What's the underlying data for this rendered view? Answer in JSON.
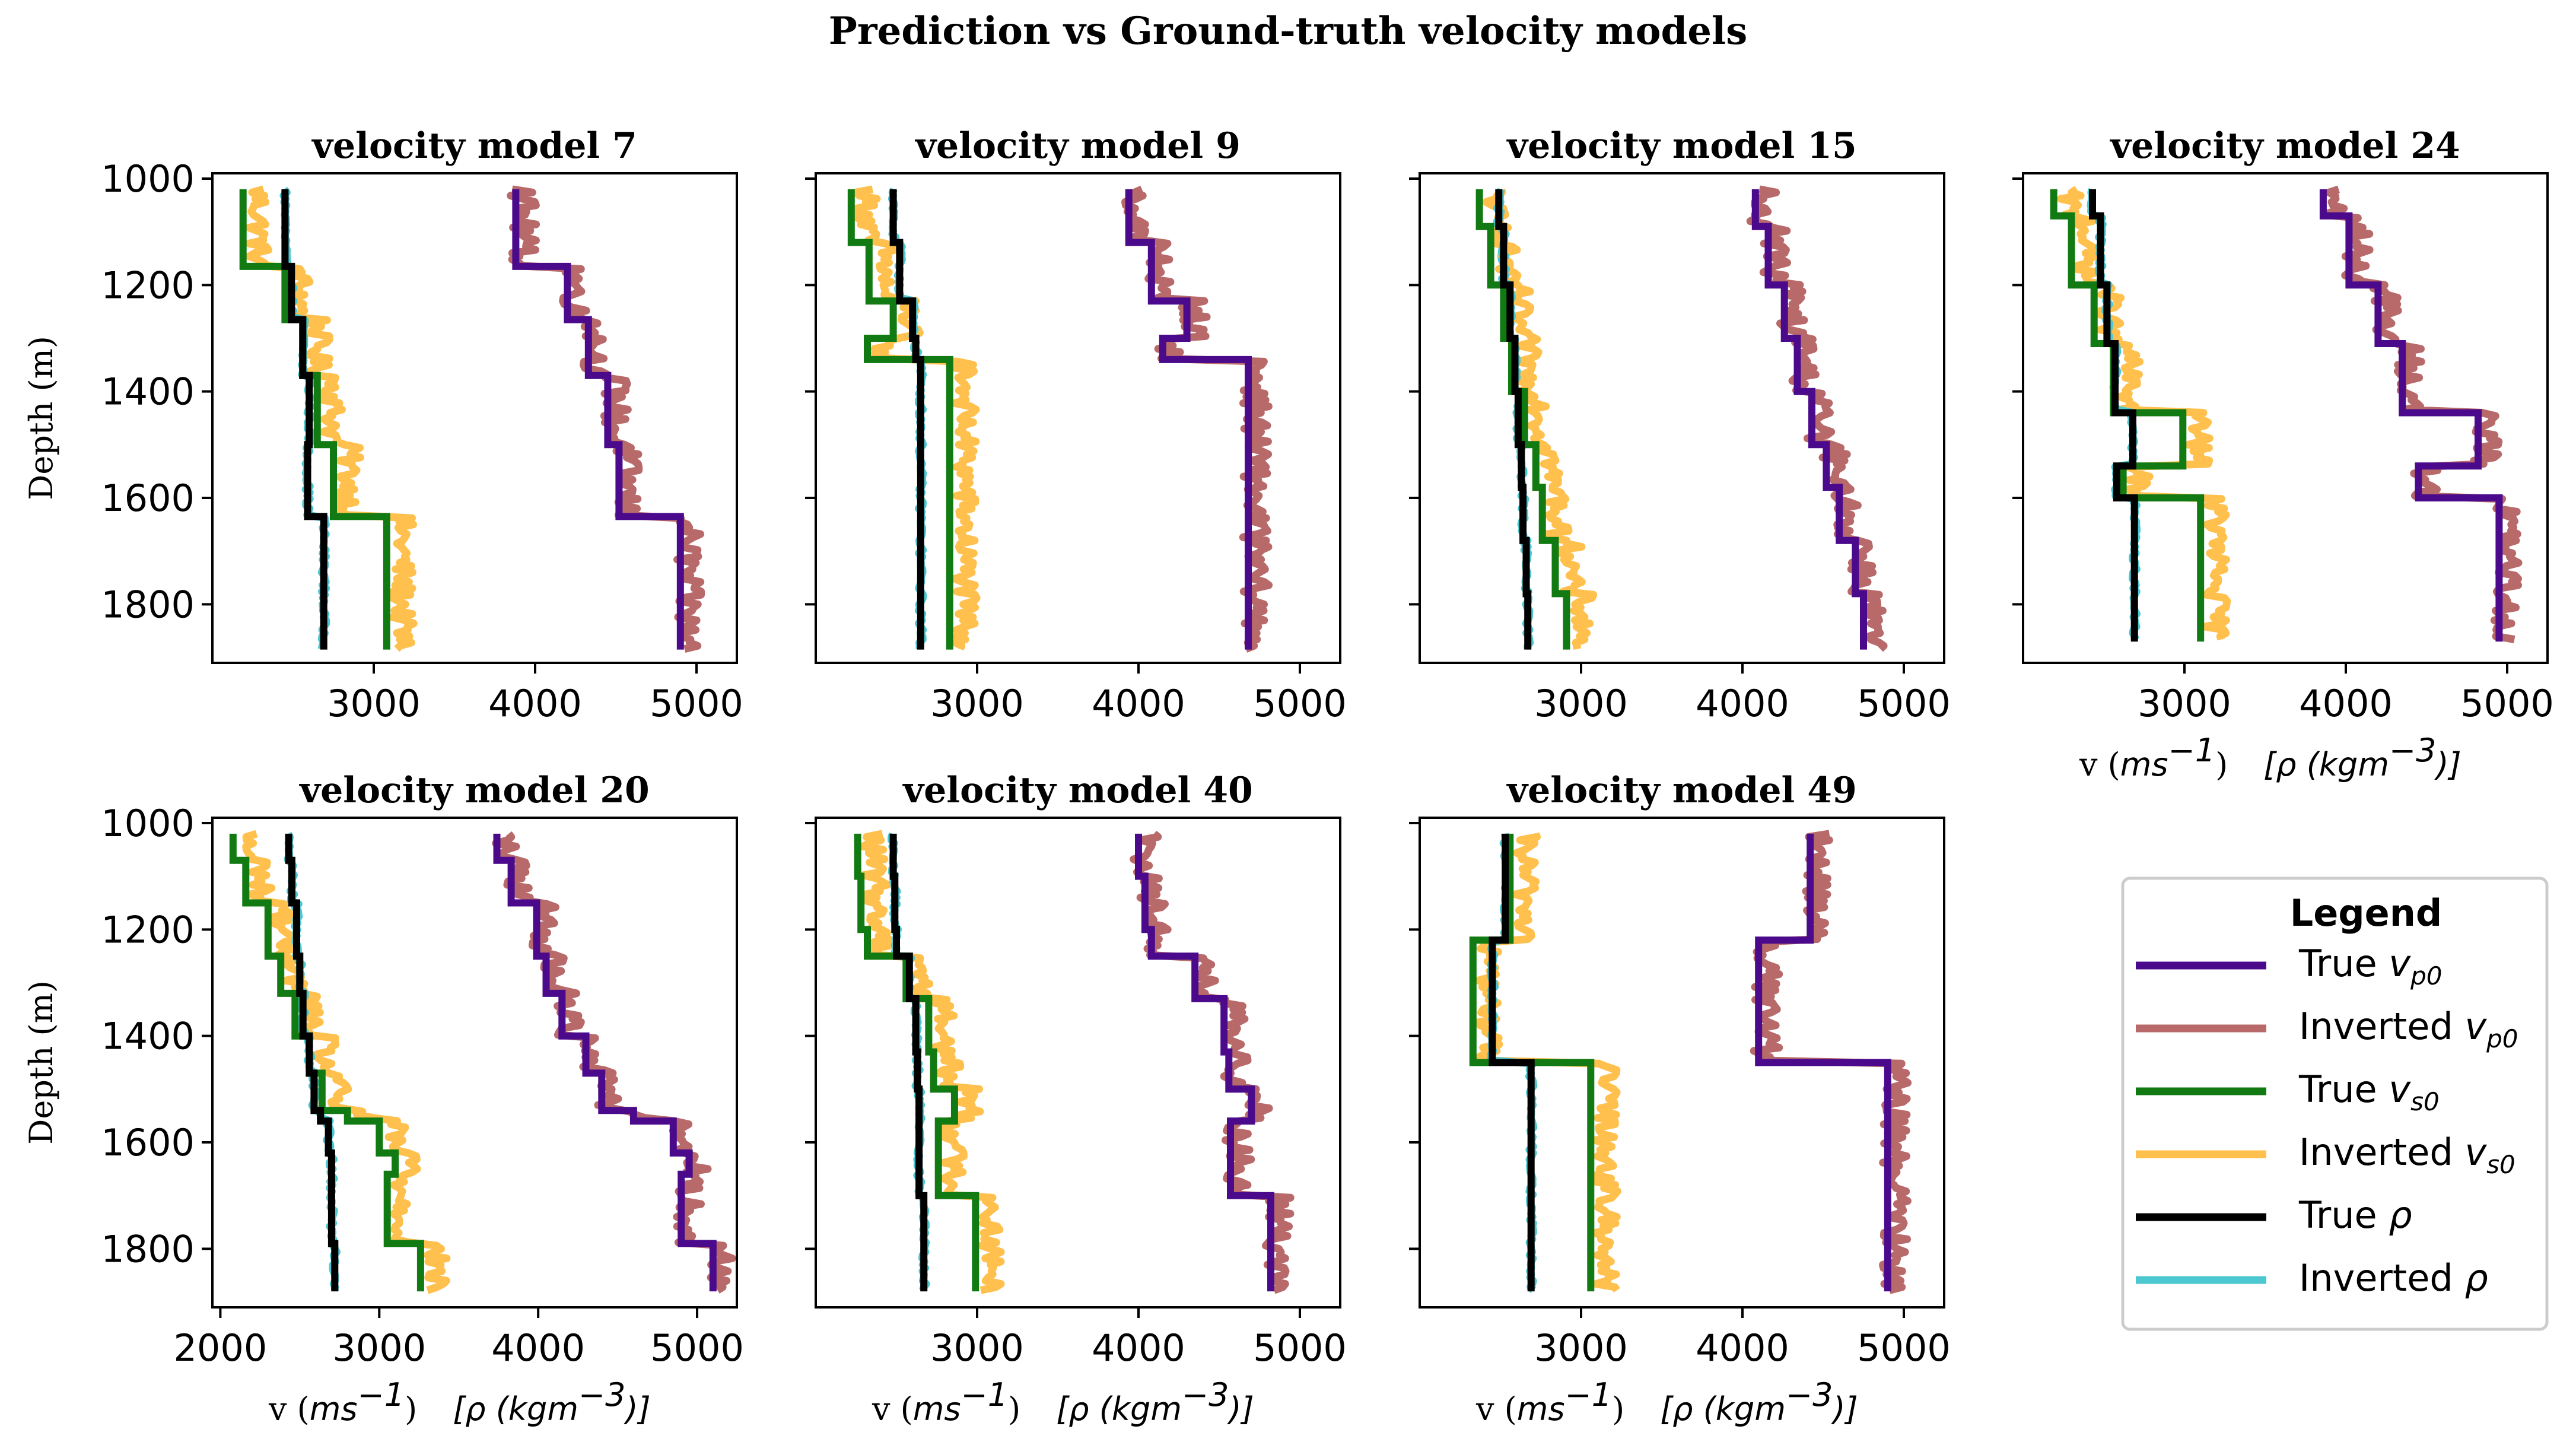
{
  "figure_title": "Prediction vs Ground-truth velocity models",
  "colors": {
    "true_vp": "#4b0a8c",
    "inv_vp": "#b86a6a",
    "true_vs": "#127a12",
    "inv_vs": "#ffc04d",
    "true_rho": "#000000",
    "inv_rho": "#4dc8d0"
  },
  "legend": {
    "title": "Legend",
    "entries": [
      {
        "text": "True ",
        "sym": "v",
        "sub": "p0",
        "color_key": "true_vp"
      },
      {
        "text": "Inverted ",
        "sym": "v",
        "sub": "p0",
        "color_key": "inv_vp"
      },
      {
        "text": "True ",
        "sym": "v",
        "sub": "s0",
        "color_key": "true_vs"
      },
      {
        "text": "Inverted ",
        "sym": "v",
        "sub": "s0",
        "color_key": "inv_vs"
      },
      {
        "text": "True ",
        "sym": "ρ",
        "sub": "",
        "color_key": "true_rho"
      },
      {
        "text": "Inverted ",
        "sym": "ρ",
        "sub": "",
        "color_key": "inv_rho"
      }
    ]
  },
  "axis_text": {
    "ylabel": "Depth (m)",
    "xlabel_v": "v (",
    "xlabel_unit": "ms",
    "xlabel_exp": "−1",
    "xlabel_close": ")",
    "xlabel_rho_open": "[",
    "xlabel_rho": "ρ (kgm",
    "xlabel_rho_exp": "−3",
    "xlabel_rho_close": ")]"
  },
  "chart_data": [
    {
      "type": "line",
      "title": "velocity model 7",
      "xlim": [
        2000,
        5250
      ],
      "ylim": [
        1910,
        990
      ],
      "show_xticks": [
        2000,
        3000,
        4000,
        5000
      ],
      "x_tick_labels": [
        "3000",
        "4000",
        "5000"
      ],
      "y_ticks": [
        1000,
        1200,
        1400,
        1600,
        1800
      ],
      "series": {
        "true_vp": {
          "x": [
            3880,
            3880,
            4200,
            4200,
            4330,
            4330,
            4450,
            4450,
            4520,
            4520,
            4900,
            4900
          ],
          "y": [
            1020,
            1165,
            1165,
            1265,
            1265,
            1370,
            1370,
            1500,
            1500,
            1635,
            1635,
            1885
          ]
        },
        "true_vs": {
          "x": [
            2190,
            2190,
            2450,
            2450,
            2560,
            2560,
            2650,
            2650,
            2750,
            2750,
            3080,
            3080
          ],
          "y": [
            1020,
            1165,
            1165,
            1265,
            1265,
            1370,
            1370,
            1500,
            1500,
            1635,
            1635,
            1885
          ]
        },
        "true_rho": {
          "x": [
            2450,
            2450,
            2490,
            2490,
            2560,
            2560,
            2600,
            2600,
            2590,
            2590,
            2690,
            2690
          ],
          "y": [
            1020,
            1165,
            1165,
            1265,
            1265,
            1370,
            1370,
            1500,
            1500,
            1635,
            1635,
            1885
          ]
        }
      }
    },
    {
      "type": "line",
      "title": "velocity model 9",
      "xlim": [
        2000,
        5250
      ],
      "ylim": [
        1910,
        990
      ],
      "x_tick_labels": [
        "3000",
        "4000",
        "5000"
      ],
      "y_ticks": [
        1000,
        1200,
        1400,
        1600,
        1800
      ],
      "series": {
        "true_vp": {
          "x": [
            3940,
            3940,
            4080,
            4080,
            4300,
            4300,
            4150,
            4150,
            4680,
            4680
          ],
          "y": [
            1020,
            1120,
            1120,
            1230,
            1230,
            1300,
            1300,
            1340,
            1340,
            1885
          ]
        },
        "true_vs": {
          "x": [
            2220,
            2220,
            2330,
            2330,
            2480,
            2480,
            2320,
            2320,
            2830,
            2830
          ],
          "y": [
            1020,
            1120,
            1120,
            1230,
            1230,
            1300,
            1300,
            1340,
            1340,
            1885
          ]
        },
        "true_rho": {
          "x": [
            2480,
            2480,
            2520,
            2520,
            2600,
            2600,
            2620,
            2620,
            2650,
            2650
          ],
          "y": [
            1020,
            1120,
            1120,
            1230,
            1230,
            1300,
            1300,
            1340,
            1340,
            1885
          ]
        }
      }
    },
    {
      "type": "line",
      "title": "velocity model 15",
      "xlim": [
        2000,
        5250
      ],
      "ylim": [
        1910,
        990
      ],
      "x_tick_labels": [
        "3000",
        "4000",
        "5000"
      ],
      "y_ticks": [
        1000,
        1200,
        1400,
        1600,
        1800
      ],
      "series": {
        "true_vp": {
          "x": [
            4080,
            4080,
            4160,
            4160,
            4260,
            4260,
            4340,
            4340,
            4430,
            4430,
            4520,
            4520,
            4600,
            4600,
            4700,
            4700,
            4750,
            4750
          ],
          "y": [
            1020,
            1090,
            1090,
            1200,
            1200,
            1300,
            1300,
            1400,
            1400,
            1500,
            1500,
            1580,
            1580,
            1680,
            1680,
            1780,
            1780,
            1885
          ]
        },
        "true_vs": {
          "x": [
            2370,
            2370,
            2440,
            2440,
            2520,
            2520,
            2570,
            2570,
            2650,
            2650,
            2720,
            2720,
            2760,
            2760,
            2840,
            2840,
            2910,
            2910
          ],
          "y": [
            1020,
            1090,
            1090,
            1200,
            1200,
            1300,
            1300,
            1400,
            1400,
            1500,
            1500,
            1580,
            1580,
            1680,
            1680,
            1780,
            1780,
            1885
          ]
        },
        "true_rho": {
          "x": [
            2490,
            2490,
            2520,
            2520,
            2560,
            2560,
            2590,
            2590,
            2610,
            2610,
            2630,
            2630,
            2640,
            2640,
            2660,
            2660,
            2670,
            2670
          ],
          "y": [
            1020,
            1090,
            1090,
            1200,
            1200,
            1300,
            1300,
            1400,
            1400,
            1500,
            1500,
            1580,
            1580,
            1680,
            1680,
            1780,
            1780,
            1885
          ]
        }
      }
    },
    {
      "type": "line",
      "title": "velocity model 24",
      "xlim": [
        2000,
        5250
      ],
      "ylim": [
        1910,
        990
      ],
      "x_tick_labels": [
        "3000",
        "4000",
        "5000"
      ],
      "y_ticks": [
        1000,
        1200,
        1400,
        1600,
        1800
      ],
      "series": {
        "true_vp": {
          "x": [
            3860,
            3860,
            4020,
            4020,
            4200,
            4200,
            4350,
            4350,
            4820,
            4820,
            4450,
            4450,
            4950,
            4950
          ],
          "y": [
            1020,
            1070,
            1070,
            1200,
            1200,
            1310,
            1310,
            1440,
            1440,
            1540,
            1540,
            1600,
            1600,
            1870
          ]
        },
        "true_vs": {
          "x": [
            2190,
            2190,
            2300,
            2300,
            2440,
            2440,
            2560,
            2560,
            2990,
            2990,
            2620,
            2620,
            3100,
            3100
          ],
          "y": [
            1020,
            1070,
            1070,
            1200,
            1200,
            1310,
            1310,
            1440,
            1440,
            1540,
            1540,
            1600,
            1600,
            1870
          ]
        },
        "true_rho": {
          "x": [
            2430,
            2430,
            2480,
            2480,
            2520,
            2520,
            2570,
            2570,
            2680,
            2680,
            2580,
            2580,
            2690,
            2690
          ],
          "y": [
            1020,
            1070,
            1070,
            1200,
            1200,
            1310,
            1310,
            1440,
            1440,
            1540,
            1540,
            1600,
            1600,
            1870
          ]
        }
      }
    },
    {
      "type": "line",
      "title": "velocity model 20",
      "xlim": [
        1950,
        5250
      ],
      "ylim": [
        1910,
        990
      ],
      "x_tick_labels": [
        "2000",
        "3000",
        "4000",
        "5000"
      ],
      "y_ticks": [
        1000,
        1200,
        1400,
        1600,
        1800
      ],
      "series": {
        "true_vp": {
          "x": [
            3740,
            3740,
            3830,
            3830,
            3990,
            3990,
            4050,
            4050,
            4150,
            4150,
            4300,
            4300,
            4400,
            4400,
            4600,
            4600,
            4850,
            4850,
            4950,
            4950,
            4900,
            4900,
            5100,
            5100
          ],
          "y": [
            1020,
            1070,
            1070,
            1150,
            1150,
            1250,
            1250,
            1320,
            1320,
            1400,
            1400,
            1470,
            1470,
            1540,
            1540,
            1560,
            1560,
            1620,
            1620,
            1660,
            1660,
            1790,
            1790,
            1880
          ]
        },
        "true_vs": {
          "x": [
            2080,
            2080,
            2160,
            2160,
            2300,
            2300,
            2380,
            2380,
            2470,
            2470,
            2560,
            2560,
            2640,
            2640,
            2800,
            2800,
            3000,
            3000,
            3100,
            3100,
            3050,
            3050,
            3260,
            3260
          ],
          "y": [
            1020,
            1070,
            1070,
            1150,
            1150,
            1250,
            1250,
            1320,
            1320,
            1400,
            1400,
            1470,
            1470,
            1540,
            1540,
            1560,
            1560,
            1620,
            1620,
            1660,
            1660,
            1790,
            1790,
            1880
          ]
        },
        "true_rho": {
          "x": [
            2430,
            2430,
            2450,
            2450,
            2480,
            2480,
            2500,
            2500,
            2520,
            2520,
            2560,
            2560,
            2590,
            2590,
            2630,
            2630,
            2680,
            2680,
            2700,
            2700,
            2700,
            2700,
            2720,
            2720
          ],
          "y": [
            1020,
            1070,
            1070,
            1150,
            1150,
            1250,
            1250,
            1320,
            1320,
            1400,
            1400,
            1470,
            1470,
            1540,
            1540,
            1560,
            1560,
            1620,
            1620,
            1660,
            1660,
            1790,
            1790,
            1880
          ]
        }
      }
    },
    {
      "type": "line",
      "title": "velocity model 40",
      "xlim": [
        2000,
        5250
      ],
      "ylim": [
        1910,
        990
      ],
      "x_tick_labels": [
        "3000",
        "4000",
        "5000"
      ],
      "y_ticks": [
        1000,
        1200,
        1400,
        1600,
        1800
      ],
      "series": {
        "true_vp": {
          "x": [
            4000,
            4000,
            4040,
            4040,
            4080,
            4080,
            4350,
            4350,
            4530,
            4530,
            4560,
            4560,
            4700,
            4700,
            4570,
            4570,
            4820,
            4820
          ],
          "y": [
            1020,
            1100,
            1100,
            1200,
            1200,
            1250,
            1250,
            1330,
            1330,
            1430,
            1430,
            1500,
            1500,
            1560,
            1560,
            1700,
            1700,
            1880
          ]
        },
        "true_vs": {
          "x": [
            2260,
            2260,
            2280,
            2280,
            2320,
            2320,
            2560,
            2560,
            2700,
            2700,
            2730,
            2730,
            2860,
            2860,
            2760,
            2760,
            2990,
            2990
          ],
          "y": [
            1020,
            1100,
            1100,
            1200,
            1200,
            1250,
            1250,
            1330,
            1330,
            1430,
            1430,
            1500,
            1500,
            1560,
            1560,
            1700,
            1700,
            1880
          ]
        },
        "true_rho": {
          "x": [
            2480,
            2480,
            2490,
            2490,
            2500,
            2500,
            2580,
            2580,
            2620,
            2620,
            2630,
            2630,
            2640,
            2640,
            2640,
            2640,
            2670,
            2670
          ],
          "y": [
            1020,
            1100,
            1100,
            1200,
            1200,
            1250,
            1250,
            1330,
            1330,
            1430,
            1430,
            1500,
            1500,
            1560,
            1560,
            1700,
            1700,
            1880
          ]
        }
      }
    },
    {
      "type": "line",
      "title": "velocity model 49",
      "xlim": [
        2000,
        5250
      ],
      "ylim": [
        1910,
        990
      ],
      "x_tick_labels": [
        "3000",
        "4000",
        "5000"
      ],
      "y_ticks": [
        1000,
        1200,
        1400,
        1600,
        1800
      ],
      "series": {
        "true_vp": {
          "x": [
            4420,
            4420,
            4100,
            4100,
            4900,
            4900
          ],
          "y": [
            1020,
            1220,
            1220,
            1450,
            1450,
            1880
          ]
        },
        "true_vs": {
          "x": [
            2560,
            2560,
            2330,
            2330,
            3060,
            3060
          ],
          "y": [
            1020,
            1220,
            1220,
            1450,
            1450,
            1880
          ]
        },
        "true_rho": {
          "x": [
            2530,
            2530,
            2450,
            2450,
            2690,
            2690
          ],
          "y": [
            1020,
            1220,
            1220,
            1450,
            1450,
            1880
          ]
        }
      }
    }
  ]
}
